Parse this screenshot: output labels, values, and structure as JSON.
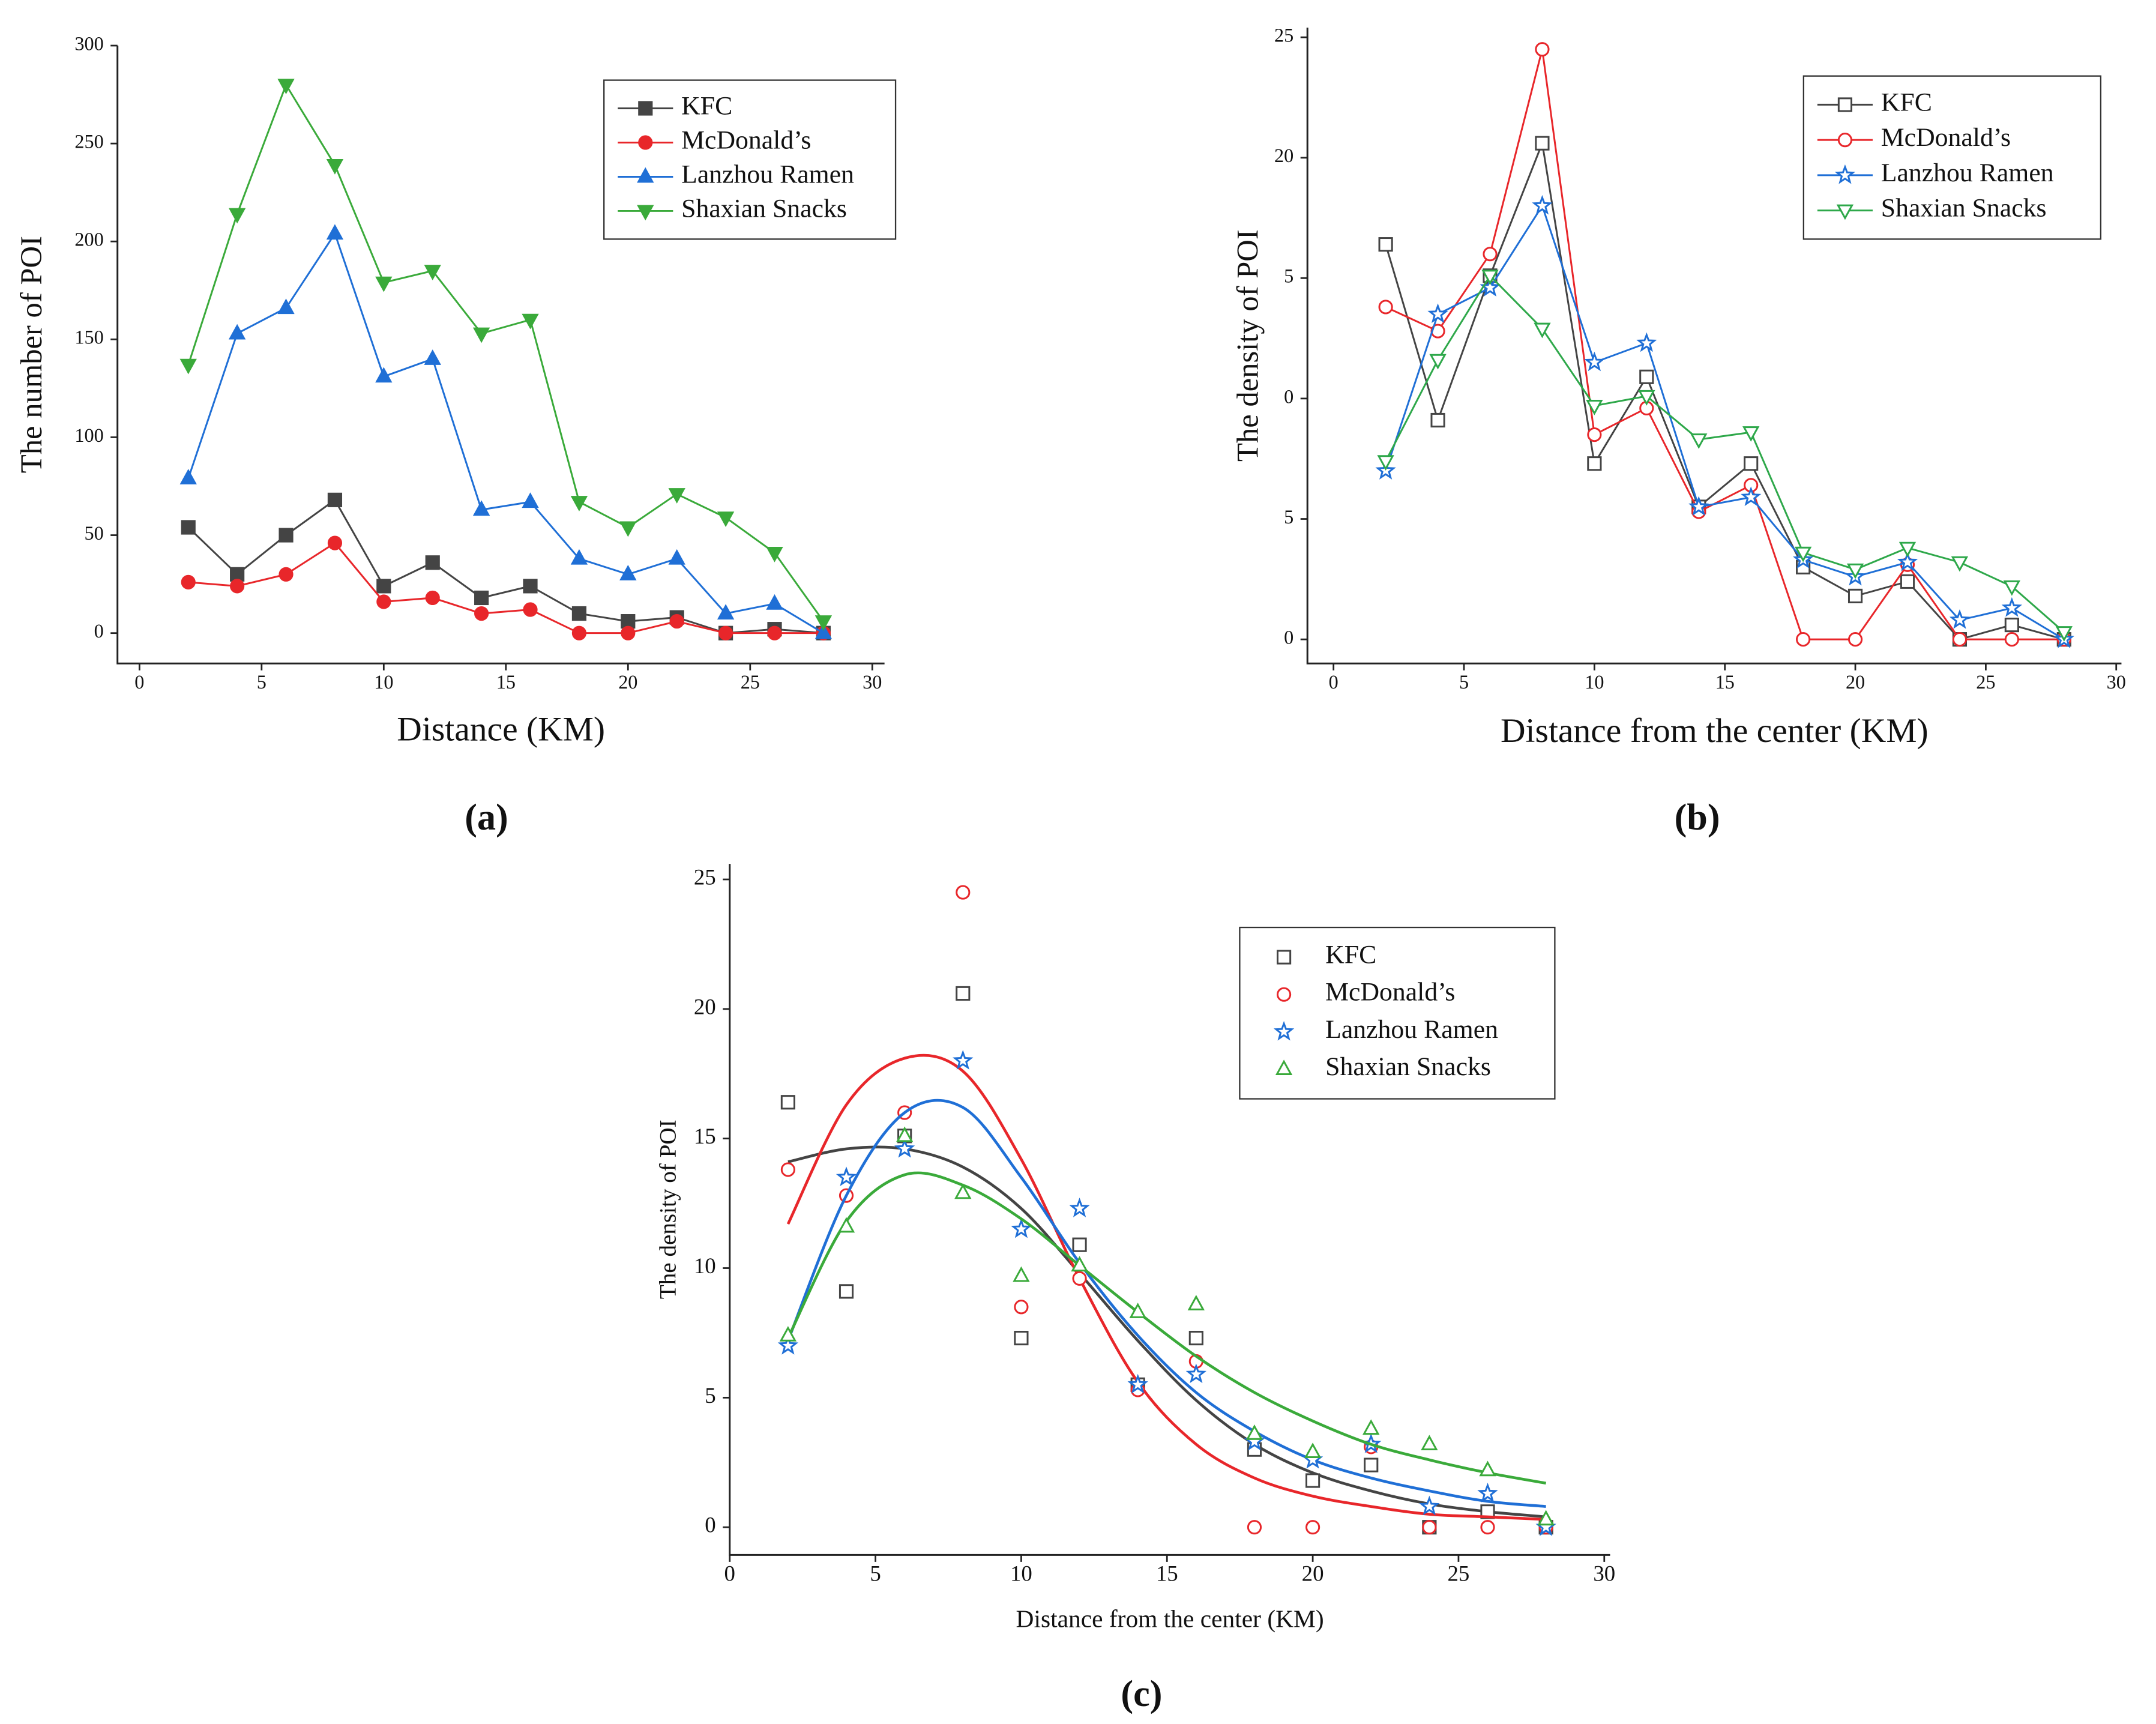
{
  "chart_data": [
    {
      "type": "line",
      "caption": "(a)",
      "x_label": "Distance (KM)",
      "y_label": "The number of POI",
      "x": [
        2,
        4,
        6,
        8,
        10,
        12,
        14,
        16,
        18,
        20,
        22,
        24,
        26,
        28
      ],
      "xlim": [
        -0.9,
        30.5
      ],
      "xticks": [
        0,
        5,
        10,
        15,
        20,
        25,
        30
      ],
      "ylim": [
        -15.5,
        300
      ],
      "yticks": [
        0,
        50,
        100,
        150,
        200,
        250,
        300
      ],
      "series": [
        {
          "name": "KFC",
          "color": "#444444",
          "marker": "square",
          "filled": true,
          "values": [
            54,
            30,
            50,
            68,
            24,
            36,
            18,
            24,
            10,
            6,
            8,
            0,
            2,
            0
          ]
        },
        {
          "name": "McDonald’s",
          "color": "#e8262a",
          "marker": "circle",
          "filled": true,
          "values": [
            26,
            24,
            30,
            46,
            16,
            18,
            10,
            12,
            0,
            0,
            6,
            0,
            0,
            0
          ]
        },
        {
          "name": "Lanzhou Ramen",
          "color": "#1f6fd6",
          "marker": "triangle",
          "filled": true,
          "values": [
            79,
            153,
            166,
            204,
            131,
            140,
            63,
            67,
            38,
            30,
            38,
            10,
            15,
            0
          ]
        },
        {
          "name": "Shaxian Snacks",
          "color": "#3aaa3a",
          "marker": "triangle-down",
          "filled": true,
          "values": [
            137,
            214,
            280,
            239,
            179,
            185,
            153,
            160,
            67,
            54,
            71,
            59,
            41,
            6
          ]
        }
      ]
    },
    {
      "type": "line",
      "caption": "(b)",
      "x_label": "Distance from the center (KM)",
      "y_label": "The density of POI",
      "x": [
        2,
        4,
        6,
        8,
        10,
        12,
        14,
        16,
        18,
        20,
        22,
        24,
        26,
        28
      ],
      "xlim": [
        -1,
        30.2
      ],
      "xticks": [
        0,
        5,
        10,
        15,
        20,
        25,
        30
      ],
      "ylim": [
        -1,
        25.4
      ],
      "yticks": [
        0,
        5,
        {
          "value": 10,
          "label": "0"
        },
        {
          "value": 15,
          "label": "5"
        },
        20,
        25
      ],
      "series": [
        {
          "name": "KFC",
          "color": "#444444",
          "marker": "square",
          "filled": false,
          "values": [
            16.4,
            9.1,
            15.1,
            20.6,
            7.3,
            10.9,
            5.5,
            7.3,
            3.0,
            1.8,
            2.4,
            0,
            0.6,
            0
          ]
        },
        {
          "name": "McDonald’s",
          "color": "#e8262a",
          "marker": "circle",
          "filled": false,
          "values": [
            13.8,
            12.8,
            16.0,
            24.5,
            8.5,
            9.6,
            5.3,
            6.4,
            0,
            0,
            3.1,
            0,
            0,
            0
          ]
        },
        {
          "name": "Lanzhou Ramen",
          "color": "#1f6fd6",
          "marker": "star",
          "filled": false,
          "values": [
            7.0,
            13.5,
            14.6,
            18.0,
            11.5,
            12.3,
            5.5,
            5.9,
            3.3,
            2.6,
            3.2,
            0.8,
            1.3,
            0
          ]
        },
        {
          "name": "Shaxian Snacks",
          "color": "#2ea84a",
          "marker": "triangle-down",
          "filled": false,
          "values": [
            7.4,
            11.6,
            15.1,
            12.9,
            9.7,
            10.1,
            8.3,
            8.6,
            3.6,
            2.9,
            3.8,
            3.2,
            2.2,
            0.3
          ]
        }
      ]
    },
    {
      "type": "scatter",
      "caption": "(c)",
      "x_label": "Distance from the center (KM)",
      "y_label": "The density of  POI",
      "x": [
        2,
        4,
        6,
        8,
        10,
        12,
        14,
        16,
        18,
        20,
        22,
        24,
        26,
        28
      ],
      "xlim": [
        0,
        30.2
      ],
      "xticks": [
        0,
        5,
        10,
        15,
        20,
        25,
        30
      ],
      "ylim": [
        -1.07,
        25.6
      ],
      "yticks": [
        0,
        5,
        10,
        15,
        20,
        25
      ],
      "series": [
        {
          "name": "KFC",
          "color": "#444444",
          "marker": "square",
          "filled": false,
          "values": [
            16.4,
            9.1,
            15.1,
            20.6,
            7.3,
            10.9,
            5.5,
            7.3,
            3.0,
            1.8,
            2.4,
            0,
            0.6,
            0
          ],
          "fit": [
            14.1,
            14.6,
            14.6,
            13.9,
            12.3,
            9.8,
            7.2,
            4.9,
            3.2,
            2.1,
            1.4,
            0.9,
            0.6,
            0.4
          ]
        },
        {
          "name": "McDonald’s",
          "color": "#e8262a",
          "marker": "circle",
          "filled": false,
          "values": [
            13.8,
            12.8,
            16.0,
            24.5,
            8.5,
            9.6,
            5.3,
            6.4,
            0,
            0,
            3.1,
            0,
            0,
            0
          ],
          "fit": [
            11.7,
            16.3,
            18.1,
            17.6,
            14.2,
            9.6,
            5.6,
            3.2,
            1.9,
            1.2,
            0.8,
            0.5,
            0.4,
            0.3
          ]
        },
        {
          "name": "Lanzhou Ramen",
          "color": "#1f6fd6",
          "marker": "star",
          "filled": false,
          "values": [
            7.0,
            13.5,
            14.6,
            18.0,
            11.5,
            12.3,
            5.5,
            5.9,
            3.3,
            2.6,
            3.2,
            0.8,
            1.3,
            0
          ],
          "fit": [
            7.2,
            12.8,
            16.0,
            16.2,
            13.5,
            10.2,
            7.4,
            5.2,
            3.7,
            2.6,
            1.9,
            1.4,
            1.0,
            0.8
          ]
        },
        {
          "name": "Shaxian Snacks",
          "color": "#3aaa3a",
          "marker": "triangle",
          "filled": false,
          "values": [
            7.4,
            11.6,
            15.1,
            12.9,
            9.7,
            10.1,
            8.3,
            8.6,
            3.6,
            2.9,
            3.8,
            3.2,
            2.2,
            0.3
          ],
          "fit": [
            7.3,
            11.8,
            13.6,
            13.2,
            11.9,
            10.1,
            8.3,
            6.6,
            5.2,
            4.1,
            3.2,
            2.6,
            2.1,
            1.7
          ]
        }
      ]
    }
  ]
}
